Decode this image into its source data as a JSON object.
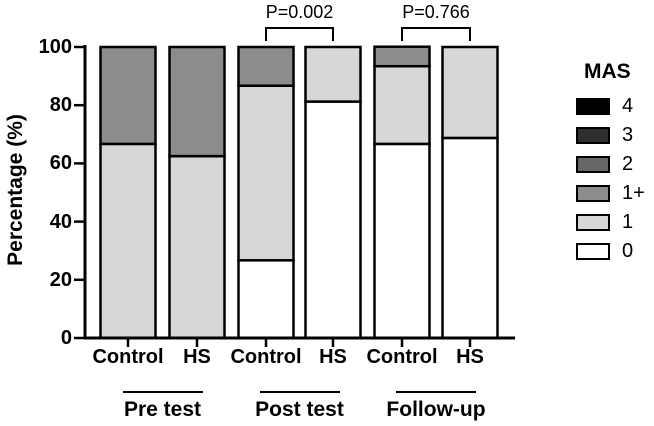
{
  "figure": {
    "background": "#ffffff",
    "axis_color": "#000000"
  },
  "chart_data": {
    "type": "bar",
    "subtype": "stacked-percentage",
    "title": "",
    "xlabel": "",
    "ylabel": "Percentage (%)",
    "ylim": [
      0,
      100
    ],
    "yticks": [
      0,
      20,
      40,
      60,
      80,
      100
    ],
    "grid": "off",
    "legend_position": "right",
    "categories": [
      "Control",
      "HS",
      "Control",
      "HS",
      "Control",
      "HS"
    ],
    "groups": [
      {
        "label": "Pre test",
        "bars": [
          0,
          1
        ]
      },
      {
        "label": "Post test",
        "bars": [
          2,
          3
        ]
      },
      {
        "label": "Follow-up",
        "bars": [
          4,
          5
        ]
      }
    ],
    "series": [
      {
        "name": "0",
        "color": "#ffffff",
        "values": [
          0,
          0,
          26.7,
          81.25,
          66.7,
          68.75
        ]
      },
      {
        "name": "1",
        "color": "#d7d7d7",
        "values": [
          66.7,
          62.5,
          60.0,
          18.75,
          26.7,
          31.25
        ]
      },
      {
        "name": "1+",
        "color": "#8c8c8c",
        "values": [
          33.3,
          37.5,
          13.3,
          0,
          6.7,
          0
        ]
      },
      {
        "name": "2",
        "color": "#666666",
        "values": [
          0,
          0,
          0,
          0,
          0,
          0
        ]
      },
      {
        "name": "3",
        "color": "#2e2e2e",
        "values": [
          0,
          0,
          0,
          0,
          0,
          0
        ]
      },
      {
        "name": "4",
        "color": "#000000",
        "values": [
          0,
          0,
          0,
          0,
          0,
          0
        ]
      }
    ],
    "legend": {
      "title": "MAS",
      "entries": [
        {
          "label": "4",
          "color": "#000000"
        },
        {
          "label": "3",
          "color": "#2e2e2e"
        },
        {
          "label": "2",
          "color": "#666666"
        },
        {
          "label": "1+",
          "color": "#8c8c8c"
        },
        {
          "label": "1",
          "color": "#d7d7d7"
        },
        {
          "label": "0",
          "color": "#ffffff"
        }
      ]
    },
    "annotations": [
      {
        "label": "P=0.002",
        "bars": [
          2,
          3
        ]
      },
      {
        "label": "P=0.766",
        "bars": [
          4,
          5
        ]
      }
    ]
  }
}
